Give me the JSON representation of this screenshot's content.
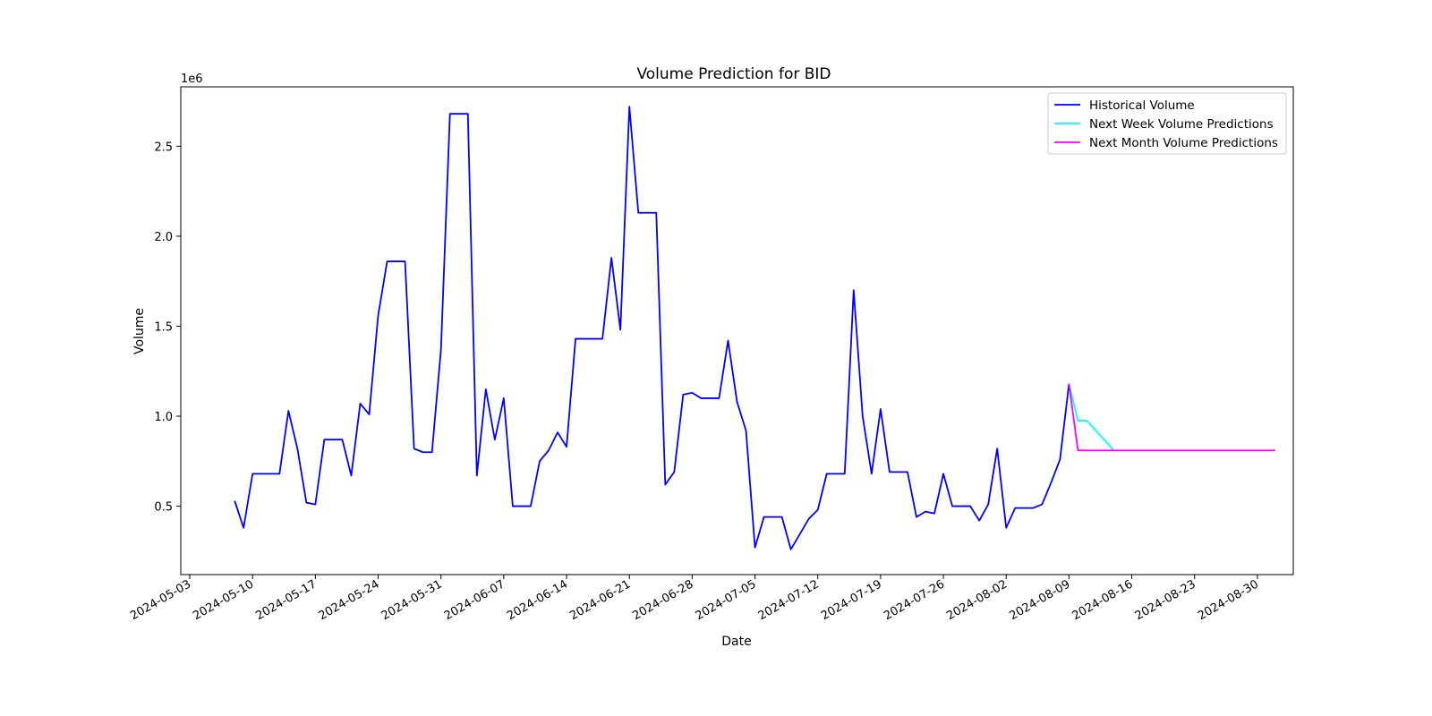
{
  "chart_data": {
    "type": "line",
    "title": "Volume Prediction for BID",
    "xlabel": "Date",
    "ylabel": "Volume",
    "y_offset_label": "1e6",
    "y_scale": 1000000,
    "xlim": [
      "2024-05-02",
      "2024-09-03"
    ],
    "ylim": [
      120000,
      2830000
    ],
    "grid": false,
    "legend_position": "top-right",
    "x_ticks": [
      "2024-05-03",
      "2024-05-10",
      "2024-05-17",
      "2024-05-24",
      "2024-05-31",
      "2024-06-07",
      "2024-06-14",
      "2024-06-21",
      "2024-06-28",
      "2024-07-05",
      "2024-07-12",
      "2024-07-19",
      "2024-07-26",
      "2024-08-02",
      "2024-08-09",
      "2024-08-16",
      "2024-08-23",
      "2024-08-30"
    ],
    "y_ticks": [
      "0.5",
      "1.0",
      "1.5",
      "2.0",
      "2.5"
    ],
    "series": [
      {
        "name": "Historical Volume",
        "color": "#0000ff",
        "points": [
          [
            "2024-05-08",
            530000
          ],
          [
            "2024-05-09",
            380000
          ],
          [
            "2024-05-10",
            680000
          ],
          [
            "2024-05-13",
            680000
          ],
          [
            "2024-05-14",
            1030000
          ],
          [
            "2024-05-15",
            820000
          ],
          [
            "2024-05-16",
            520000
          ],
          [
            "2024-05-17",
            510000
          ],
          [
            "2024-05-18",
            870000
          ],
          [
            "2024-05-20",
            870000
          ],
          [
            "2024-05-21",
            670000
          ],
          [
            "2024-05-22",
            1070000
          ],
          [
            "2024-05-23",
            1010000
          ],
          [
            "2024-05-24",
            1560000
          ],
          [
            "2024-05-25",
            1860000
          ],
          [
            "2024-05-27",
            1860000
          ],
          [
            "2024-05-28",
            820000
          ],
          [
            "2024-05-29",
            800000
          ],
          [
            "2024-05-30",
            800000
          ],
          [
            "2024-05-31",
            1370000
          ],
          [
            "2024-06-01",
            2680000
          ],
          [
            "2024-06-03",
            2680000
          ],
          [
            "2024-06-04",
            670000
          ],
          [
            "2024-06-05",
            1150000
          ],
          [
            "2024-06-06",
            870000
          ],
          [
            "2024-06-07",
            1100000
          ],
          [
            "2024-06-08",
            500000
          ],
          [
            "2024-06-10",
            500000
          ],
          [
            "2024-06-11",
            750000
          ],
          [
            "2024-06-12",
            810000
          ],
          [
            "2024-06-13",
            910000
          ],
          [
            "2024-06-14",
            830000
          ],
          [
            "2024-06-15",
            1430000
          ],
          [
            "2024-06-18",
            1430000
          ],
          [
            "2024-06-19",
            1880000
          ],
          [
            "2024-06-20",
            1480000
          ],
          [
            "2024-06-21",
            2720000
          ],
          [
            "2024-06-22",
            2130000
          ],
          [
            "2024-06-24",
            2130000
          ],
          [
            "2024-06-25",
            620000
          ],
          [
            "2024-06-26",
            690000
          ],
          [
            "2024-06-27",
            1120000
          ],
          [
            "2024-06-28",
            1130000
          ],
          [
            "2024-06-29",
            1100000
          ],
          [
            "2024-07-01",
            1100000
          ],
          [
            "2024-07-02",
            1420000
          ],
          [
            "2024-07-03",
            1080000
          ],
          [
            "2024-07-04",
            920000
          ],
          [
            "2024-07-05",
            270000
          ],
          [
            "2024-07-06",
            440000
          ],
          [
            "2024-07-08",
            440000
          ],
          [
            "2024-07-09",
            260000
          ],
          [
            "2024-07-11",
            430000
          ],
          [
            "2024-07-12",
            480000
          ],
          [
            "2024-07-13",
            680000
          ],
          [
            "2024-07-15",
            680000
          ],
          [
            "2024-07-16",
            1700000
          ],
          [
            "2024-07-17",
            1000000
          ],
          [
            "2024-07-18",
            680000
          ],
          [
            "2024-07-19",
            1040000
          ],
          [
            "2024-07-20",
            690000
          ],
          [
            "2024-07-22",
            690000
          ],
          [
            "2024-07-23",
            440000
          ],
          [
            "2024-07-24",
            470000
          ],
          [
            "2024-07-25",
            460000
          ],
          [
            "2024-07-26",
            680000
          ],
          [
            "2024-07-27",
            500000
          ],
          [
            "2024-07-29",
            500000
          ],
          [
            "2024-07-30",
            420000
          ],
          [
            "2024-07-31",
            510000
          ],
          [
            "2024-08-01",
            820000
          ],
          [
            "2024-08-02",
            380000
          ],
          [
            "2024-08-03",
            490000
          ],
          [
            "2024-08-05",
            490000
          ],
          [
            "2024-08-06",
            510000
          ],
          [
            "2024-08-07",
            630000
          ],
          [
            "2024-08-08",
            760000
          ],
          [
            "2024-08-09",
            1180000
          ]
        ]
      },
      {
        "name": "Next Week Volume Predictions",
        "color": "#00ffff",
        "points": [
          [
            "2024-08-09",
            1180000
          ],
          [
            "2024-08-10",
            975000
          ],
          [
            "2024-08-11",
            975000
          ],
          [
            "2024-08-14",
            810000
          ]
        ]
      },
      {
        "name": "Next Month Volume Predictions",
        "color": "#ff00ff",
        "points": [
          [
            "2024-08-09",
            1180000
          ],
          [
            "2024-08-10",
            810000
          ],
          [
            "2024-09-01",
            810000
          ]
        ]
      }
    ]
  }
}
